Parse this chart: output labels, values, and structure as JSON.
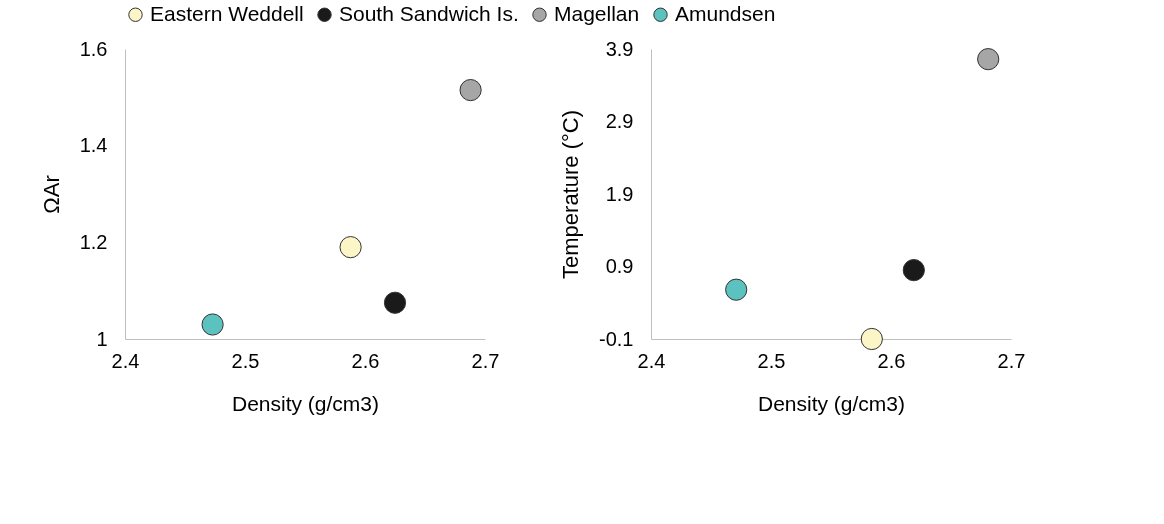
{
  "chart_data": [
    {
      "type": "scatter",
      "xlabel": "Density (g/cm3)",
      "ylabel": "ΩAr",
      "xlim": [
        2.4,
        2.7
      ],
      "xticks": [
        2.4,
        2.5,
        2.6,
        2.7
      ],
      "ylim": [
        1,
        1.6
      ],
      "yticks": [
        1,
        1.2,
        1.4,
        1.6
      ],
      "grid": false,
      "legend": "top",
      "marker": "circle",
      "series": [
        {
          "name": "Eastern Weddell",
          "color": "#fcf5c7",
          "x": [
            2.588
          ],
          "values": [
            1.19
          ]
        },
        {
          "name": "South Sandwich Is.",
          "color": "#1a1a1a",
          "x": [
            2.625
          ],
          "values": [
            1.075
          ]
        },
        {
          "name": "Magellan",
          "color": "#a6a6a6",
          "x": [
            2.688
          ],
          "values": [
            1.515
          ]
        },
        {
          "name": "Amundsen",
          "color": "#5bc2c0",
          "x": [
            2.473
          ],
          "values": [
            1.03
          ]
        }
      ]
    },
    {
      "type": "scatter",
      "xlabel": "Density (g/cm3)",
      "ylabel": "Temperature (°C)",
      "xlim": [
        2.4,
        2.7
      ],
      "xticks": [
        2.4,
        2.5,
        2.6,
        2.7
      ],
      "ylim": [
        -0.1,
        3.9
      ],
      "yticks": [
        -0.1,
        0.9,
        1.9,
        2.9,
        3.9
      ],
      "grid": false,
      "legend": "top",
      "marker": "circle",
      "series": [
        {
          "name": "Eastern Weddell",
          "color": "#fcf5c7",
          "x": [
            2.584
          ],
          "values": [
            -0.1
          ]
        },
        {
          "name": "South Sandwich Is.",
          "color": "#1a1a1a",
          "x": [
            2.619
          ],
          "values": [
            0.85
          ]
        },
        {
          "name": "Magellan",
          "color": "#a6a6a6",
          "x": [
            2.681
          ],
          "values": [
            3.76
          ]
        },
        {
          "name": "Amundsen",
          "color": "#5bc2c0",
          "x": [
            2.471
          ],
          "values": [
            0.58
          ]
        }
      ]
    }
  ]
}
